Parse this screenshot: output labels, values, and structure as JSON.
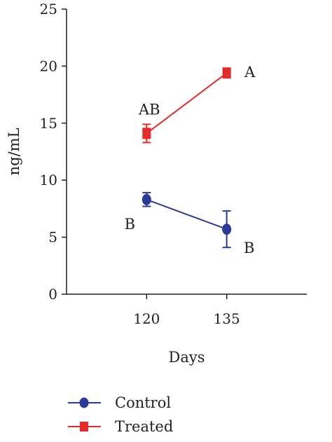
{
  "chart_data": {
    "type": "line",
    "xlabel": "Days",
    "ylabel": "ng/mL",
    "x_ticks": [
      120,
      135
    ],
    "xlim": [
      105,
      150
    ],
    "ylim": [
      0,
      25
    ],
    "y_ticks": [
      0,
      5,
      10,
      15,
      20,
      25
    ],
    "grid": false,
    "legend_position": "bottom-left",
    "series": [
      {
        "name": "Control",
        "color": "#2b3a97",
        "marker": "circle",
        "points": [
          {
            "x": 120,
            "y": 8.3,
            "err": 0.6,
            "label": "B"
          },
          {
            "x": 135,
            "y": 5.7,
            "err": 1.6,
            "label": "B"
          }
        ]
      },
      {
        "name": "Treated",
        "color": "#e32b2b",
        "marker": "square",
        "points": [
          {
            "x": 120,
            "y": 14.1,
            "err": 0.8,
            "label": "AB"
          },
          {
            "x": 135,
            "y": 19.4,
            "err": 0.3,
            "label": "A"
          }
        ]
      }
    ]
  }
}
